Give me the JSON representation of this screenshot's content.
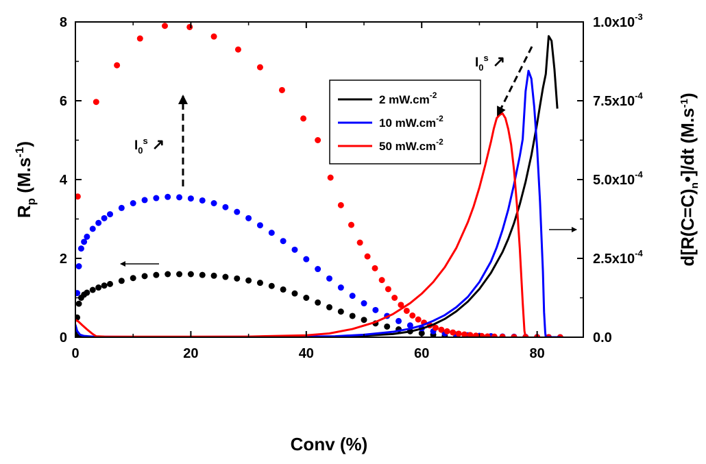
{
  "chart_data": {
    "type": "scatter",
    "xlabel": "Conv (%)",
    "ylabel_left": "R",
    "ylabel_left_sub": "p",
    "ylabel_left_rest": " (M.s",
    "ylabel_left_sup": "-1",
    "ylabel_left_end": ")",
    "ylabel_right": "d[R(C=C)",
    "ylabel_right_sub": "n",
    "ylabel_right_rest": "•]/dt (M.s",
    "ylabel_right_sup": "-1",
    "ylabel_right_end": ")",
    "xlim": [
      0,
      88
    ],
    "ylim_left": [
      0,
      8
    ],
    "ylim_right": [
      0,
      0.001
    ],
    "x_ticks": [
      {
        "v": 0,
        "label": "0"
      },
      {
        "v": 20,
        "label": "20"
      },
      {
        "v": 40,
        "label": "40"
      },
      {
        "v": 60,
        "label": "60"
      },
      {
        "v": 80,
        "label": "80"
      }
    ],
    "y_left_ticks": [
      {
        "v": 0,
        "label": "0"
      },
      {
        "v": 2,
        "label": "2"
      },
      {
        "v": 4,
        "label": "4"
      },
      {
        "v": 6,
        "label": "6"
      },
      {
        "v": 8,
        "label": "8"
      }
    ],
    "y_right_ticks": [
      {
        "v": 0,
        "base": "0.0",
        "exp": ""
      },
      {
        "v": 0.00025,
        "base": "2.5x10",
        "exp": "-4"
      },
      {
        "v": 0.0005,
        "base": "5.0x10",
        "exp": "-4"
      },
      {
        "v": 0.00075,
        "base": "7.5x10",
        "exp": "-4"
      },
      {
        "v": 0.001,
        "base": "1.0x10",
        "exp": "-3"
      }
    ],
    "legend": {
      "position": "top-center",
      "entries": [
        {
          "base": "2 mW.cm",
          "sup": "-2",
          "color": "#000000"
        },
        {
          "base": "10 mW.cm",
          "sup": "-2",
          "color": "#0000ff"
        },
        {
          "base": "50 mW.cm",
          "sup": "-2",
          "color": "#ff0000"
        }
      ]
    },
    "annotations": [
      {
        "base": "I",
        "sub": "0",
        "sup": "s",
        "arrow": "↗"
      },
      {
        "base": "I",
        "sub": "0",
        "sup": "s",
        "arrow": "↗"
      }
    ],
    "scatter_series": [
      {
        "name": "2 mW.cm-2",
        "color": "#000000",
        "axis": "left",
        "x": [
          0,
          0.3,
          0.6,
          1,
          1.5,
          2,
          3,
          4,
          5,
          6,
          8,
          10,
          12,
          14,
          16,
          18,
          20,
          22,
          24,
          26,
          28,
          30,
          32,
          34,
          36,
          38,
          40,
          42,
          44,
          46,
          48,
          50,
          52,
          54,
          56,
          58,
          60,
          62,
          64,
          66,
          68,
          70
        ],
        "y": [
          0.02,
          0.5,
          0.85,
          1.0,
          1.08,
          1.13,
          1.2,
          1.26,
          1.31,
          1.35,
          1.43,
          1.5,
          1.55,
          1.58,
          1.6,
          1.6,
          1.6,
          1.58,
          1.56,
          1.53,
          1.49,
          1.44,
          1.38,
          1.3,
          1.21,
          1.11,
          1.0,
          0.88,
          0.76,
          0.65,
          0.54,
          0.44,
          0.35,
          0.27,
          0.2,
          0.15,
          0.1,
          0.06,
          0.035,
          0.02,
          0.01,
          0.0
        ]
      },
      {
        "name": "10 mW.cm-2",
        "color": "#0000ff",
        "axis": "left",
        "x": [
          0.3,
          0.6,
          1,
          1.5,
          2,
          3,
          4,
          5,
          6,
          8,
          10,
          12,
          14,
          16,
          18,
          20,
          22,
          24,
          26,
          28,
          30,
          32,
          34,
          36,
          38,
          40,
          42,
          44,
          46,
          48,
          50,
          52,
          54,
          56,
          58,
          60,
          62,
          64,
          66,
          68,
          70,
          72,
          74,
          76,
          78,
          80,
          82,
          84
        ],
        "y": [
          1.12,
          1.8,
          2.25,
          2.42,
          2.55,
          2.75,
          2.9,
          3.02,
          3.12,
          3.28,
          3.4,
          3.48,
          3.53,
          3.56,
          3.55,
          3.52,
          3.47,
          3.4,
          3.3,
          3.18,
          3.02,
          2.84,
          2.65,
          2.44,
          2.22,
          1.98,
          1.73,
          1.49,
          1.26,
          1.05,
          0.86,
          0.69,
          0.54,
          0.41,
          0.3,
          0.22,
          0.15,
          0.1,
          0.07,
          0.05,
          0.035,
          0.025,
          0.018,
          0.012,
          0.008,
          0.005,
          0.003,
          0.0
        ]
      },
      {
        "name": "50 mW.cm-2",
        "color": "#ff0000",
        "axis": "left",
        "x": [
          0.4,
          3.6,
          7.2,
          11.2,
          15.5,
          19.8,
          24,
          28.2,
          32,
          35.8,
          39.5,
          42,
          44.2,
          46,
          47.8,
          49.3,
          50.6,
          51.9,
          53.1,
          54.2,
          55.3,
          56.4,
          57.4,
          58.4,
          59.4,
          60.4,
          61.4,
          62.4,
          63.4,
          64.4,
          65.4,
          66.4,
          67.4,
          68.4,
          69.4,
          70.4,
          71.4,
          72.6,
          74,
          76,
          78,
          80,
          82,
          84
        ],
        "y": [
          3.57,
          5.97,
          6.9,
          7.58,
          7.9,
          7.87,
          7.63,
          7.3,
          6.85,
          6.27,
          5.55,
          5.0,
          4.05,
          3.35,
          2.85,
          2.4,
          2.05,
          1.75,
          1.45,
          1.22,
          1.0,
          0.82,
          0.67,
          0.55,
          0.45,
          0.37,
          0.3,
          0.24,
          0.19,
          0.15,
          0.12,
          0.09,
          0.07,
          0.055,
          0.04,
          0.03,
          0.02,
          0.015,
          0.01,
          0.005,
          0.003,
          0.002,
          0.001,
          0.0
        ]
      }
    ],
    "line_series": [
      {
        "name": "2 mW.cm-2",
        "color": "#000000",
        "axis": "right",
        "x": [
          0,
          0.3,
          0.8,
          1.5,
          3,
          5,
          10,
          20,
          30,
          40,
          45,
          50,
          55,
          58,
          60,
          62,
          64,
          66,
          68,
          70,
          72,
          74,
          75,
          76,
          77,
          78,
          79,
          80,
          80.5,
          81,
          81.5,
          82,
          82.5,
          83,
          83.5
        ],
        "y": [
          2e-05,
          8e-06,
          3e-06,
          1.5e-06,
          1e-06,
          8e-07,
          8e-07,
          8e-07,
          1e-06,
          1.5e-06,
          2e-06,
          5e-06,
          1e-05,
          1.8e-05,
          2.7e-05,
          4e-05,
          5.8e-05,
          8.2e-05,
          0.000113,
          0.000153,
          0.000204,
          0.00027,
          0.000312,
          0.000362,
          0.000422,
          0.000493,
          0.000577,
          0.000678,
          0.000735,
          0.00079,
          0.000835,
          0.000955,
          0.00094,
          0.00085,
          0.000725
        ]
      },
      {
        "name": "10 mW.cm-2",
        "color": "#0000ff",
        "axis": "right",
        "x": [
          0,
          0.3,
          0.8,
          1.5,
          3,
          5,
          10,
          20,
          30,
          40,
          45,
          50,
          55,
          58,
          60,
          62,
          64,
          66,
          68,
          70,
          72,
          73,
          74,
          75,
          76,
          77,
          77.5,
          78,
          78.5,
          79,
          79.5,
          80,
          80.5,
          81,
          81.2,
          81.4,
          81.5,
          82,
          84
        ],
        "y": [
          4e-05,
          2e-05,
          8e-06,
          4e-06,
          2e-06,
          1.5e-06,
          1e-06,
          1e-06,
          1.5e-06,
          2e-06,
          3e-06,
          8e-06,
          1.7e-05,
          2.7e-05,
          3.7e-05,
          5.2e-05,
          7e-05,
          9.5e-05,
          0.000128,
          0.000175,
          0.00024,
          0.000285,
          0.00034,
          0.000405,
          0.000485,
          0.000575,
          0.000628,
          0.00078,
          0.000845,
          0.00082,
          0.00073,
          0.0006,
          0.00043,
          0.00021,
          8e-05,
          1.5e-05,
          0.0,
          0.0,
          0.0
        ]
      },
      {
        "name": "50 mW.cm-2",
        "color": "#ff0000",
        "axis": "right",
        "x": [
          0,
          0.5,
          1.2,
          2,
          3,
          3.6,
          5,
          10,
          20,
          30,
          40,
          44,
          48,
          52,
          55,
          58,
          60,
          62,
          64,
          66,
          68,
          69,
          70,
          71,
          72,
          72.5,
          73,
          73.5,
          74,
          74.5,
          75,
          75.5,
          76,
          76.5,
          77,
          77.5,
          77.8,
          78
        ],
        "y": [
          5.5e-05,
          5e-05,
          3.8e-05,
          2.5e-05,
          1e-05,
          3e-06,
          2e-06,
          1.5e-06,
          1.5e-06,
          2e-06,
          6e-06,
          1.2e-05,
          2.6e-05,
          4.8e-05,
          7.3e-05,
          0.000108,
          0.000138,
          0.000175,
          0.000222,
          0.000283,
          0.000365,
          0.000415,
          0.000475,
          0.000545,
          0.00062,
          0.000662,
          0.000695,
          0.000705,
          0.00071,
          0.000695,
          0.00066,
          0.00061,
          0.00053,
          0.00042,
          0.00028,
          0.00011,
          2e-05,
          0.0
        ]
      }
    ]
  }
}
